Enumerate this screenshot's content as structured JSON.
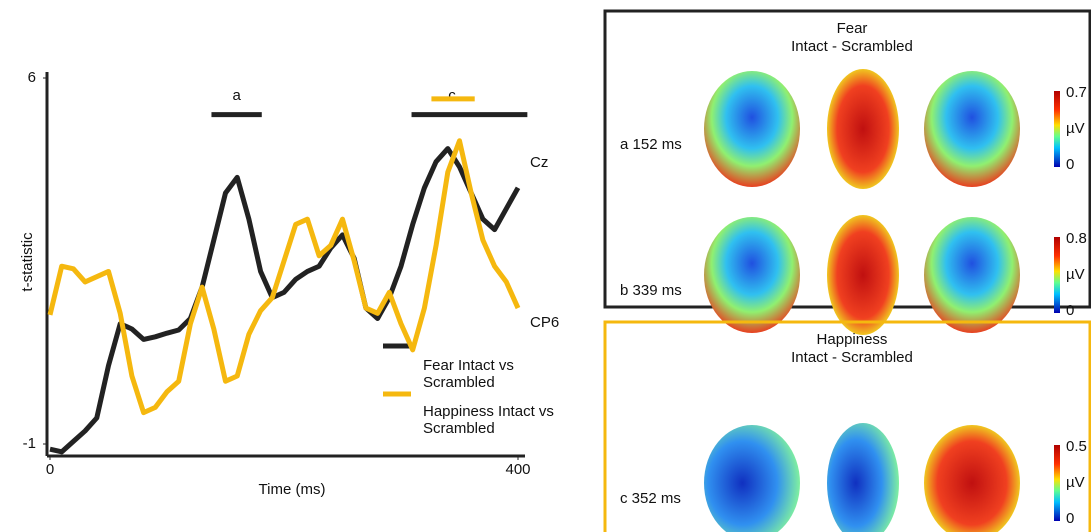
{
  "chart_data": {
    "type": "line",
    "ylabel": "t-statistic",
    "xlabel": "Time (ms)",
    "xlim": [
      0,
      400
    ],
    "ylim": [
      -1,
      6
    ],
    "xticks": [
      0,
      400
    ],
    "yticks": [
      -1,
      6
    ],
    "x": [
      0,
      10,
      20,
      30,
      40,
      50,
      60,
      70,
      80,
      90,
      100,
      110,
      120,
      130,
      140,
      150,
      160,
      170,
      180,
      190,
      200,
      210,
      220,
      230,
      240,
      250,
      260,
      270,
      280,
      290,
      300,
      310,
      320,
      330,
      340,
      350,
      360,
      370,
      380,
      390,
      400
    ],
    "series": [
      {
        "name": "Fear Intact vs Scrambled",
        "end_label": "Cz",
        "color": "#222222",
        "values": [
          -1.1,
          -1.15,
          -0.95,
          -0.75,
          -0.5,
          0.5,
          1.3,
          1.2,
          1.0,
          1.05,
          1.12,
          1.18,
          1.4,
          2.0,
          2.9,
          3.8,
          4.1,
          3.3,
          2.3,
          1.8,
          1.9,
          2.15,
          2.3,
          2.4,
          2.75,
          3.0,
          2.55,
          1.6,
          1.4,
          1.8,
          2.4,
          3.2,
          3.9,
          4.4,
          4.65,
          4.3,
          3.8,
          3.3,
          3.1,
          3.5,
          3.9
        ]
      },
      {
        "name": "Happiness Intact vs Scrambled",
        "end_label": "CP6",
        "color": "#f5b80f",
        "values": [
          1.47,
          2.4,
          2.35,
          2.1,
          2.2,
          2.3,
          1.5,
          0.3,
          -0.4,
          -0.3,
          0.0,
          0.2,
          1.3,
          2.0,
          1.2,
          0.2,
          0.3,
          1.1,
          1.55,
          1.8,
          2.5,
          3.2,
          3.3,
          2.6,
          2.8,
          3.3,
          2.5,
          1.6,
          1.5,
          1.9,
          1.3,
          0.8,
          1.6,
          2.8,
          4.2,
          4.8,
          3.8,
          2.9,
          2.4,
          2.1,
          1.6
        ]
      }
    ],
    "significance": [
      {
        "label": "a",
        "start": 138,
        "end": 181,
        "y": 5.3,
        "color": "#222222"
      },
      {
        "label": "c",
        "start": 309,
        "end": 408,
        "y": 5.3,
        "color": "#222222"
      },
      {
        "start": 326,
        "end": 363,
        "y": 5.6,
        "color": "#f5b80f"
      }
    ]
  },
  "topography": {
    "panels": [
      {
        "title": "Fear",
        "subtitle": "Intact - Scrambled",
        "border": "#222222",
        "rows": [
          {
            "label": "a 152 ms",
            "max": 0.7,
            "min": 0,
            "unit": "µV"
          },
          {
            "label": "b 339 ms",
            "max": 0.8,
            "min": 0,
            "unit": "µV"
          }
        ]
      },
      {
        "title": "Happiness",
        "subtitle": "Intact - Scrambled",
        "border": "#f5b80f",
        "rows": [
          {
            "label": "c 352 ms",
            "max": 0.5,
            "min": 0,
            "unit": "µV"
          }
        ]
      }
    ]
  }
}
